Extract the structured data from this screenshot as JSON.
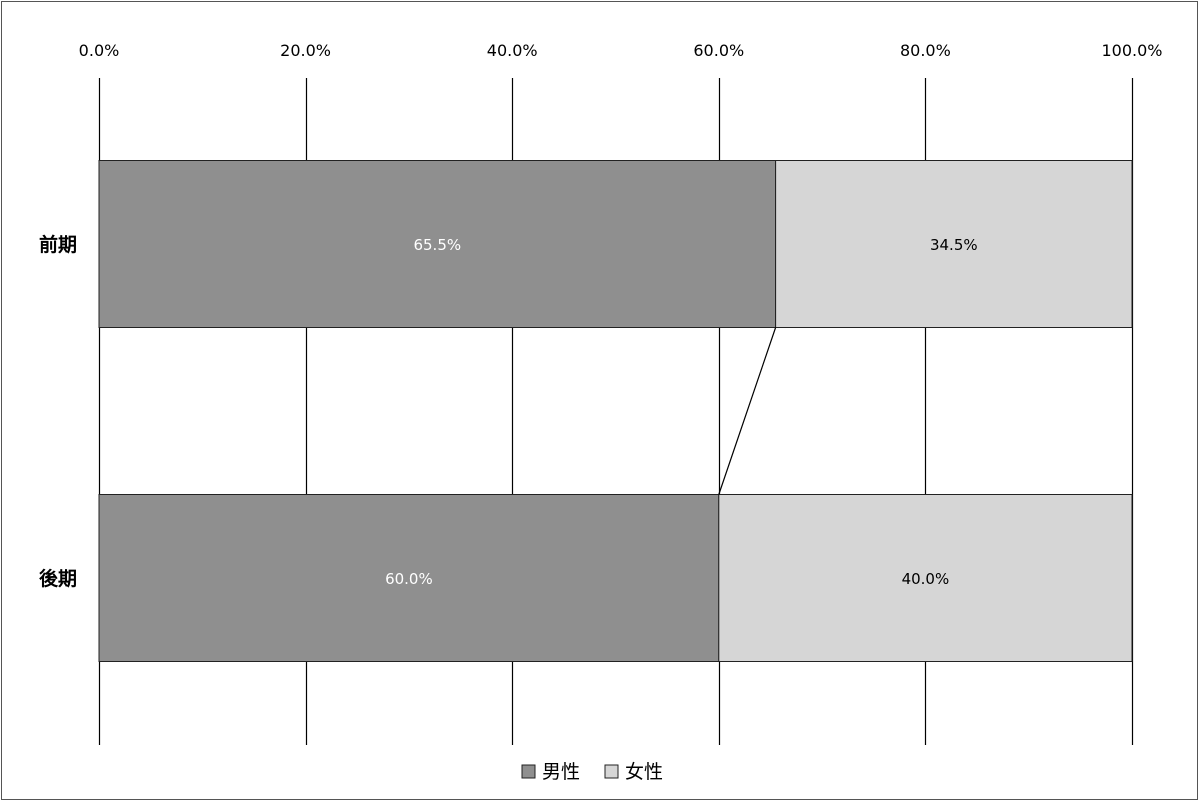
{
  "chart_data": {
    "type": "bar",
    "orientation": "horizontal",
    "stacked": "percent",
    "categories": [
      "前期",
      "後期"
    ],
    "series": [
      {
        "name": "男性",
        "values": [
          65.5,
          60.0
        ],
        "color": "#8f8f8f",
        "label_color": "#ffffff"
      },
      {
        "name": "女性",
        "values": [
          34.5,
          40.0
        ],
        "color": "#d6d6d6",
        "label_color": "#000000"
      }
    ],
    "data_labels": [
      [
        "65.5%",
        "34.5%"
      ],
      [
        "60.0%",
        "40.0%"
      ]
    ],
    "xlim": [
      0,
      100
    ],
    "x_ticks": [
      0,
      20,
      40,
      60,
      80,
      100
    ],
    "x_tick_labels": [
      "0.0%",
      "20.0%",
      "40.0%",
      "60.0%",
      "80.0%",
      "100.0%"
    ],
    "x_axis_position": "top",
    "grid": true,
    "series_lines": true,
    "legend": {
      "position": "bottom"
    },
    "title": "",
    "xlabel": "",
    "ylabel": ""
  }
}
